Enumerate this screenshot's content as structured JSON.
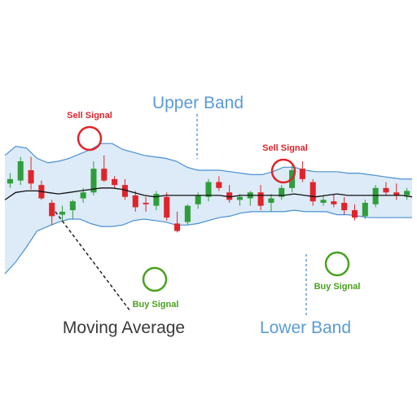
{
  "colors": {
    "band_fill": "#dcebf7",
    "band_line": "#4a8fd4",
    "bull": "#2e9e3a",
    "bear": "#e0242a",
    "ma_line": "#111111",
    "sell": "#e0242a",
    "buy": "#49a11f",
    "label_blue": "#5b9bd5",
    "label_dark": "#3a3a3a"
  },
  "labels": {
    "upper_band": "Upper Band",
    "lower_band": "Lower Band",
    "moving_average": "Moving Average",
    "sell_signal_1": "Sell Signal",
    "sell_signal_2": "Sell Signal",
    "buy_signal_1": "Buy Signal",
    "buy_signal_2": "Buy Signal"
  },
  "chart_data": {
    "type": "candlestick",
    "title": "",
    "xlabel": "",
    "ylabel": "",
    "ylim": [
      0,
      100
    ],
    "grid": false,
    "axes_shown": false,
    "upper_band": [
      82,
      88,
      87,
      80,
      77,
      78,
      80,
      83,
      86,
      90,
      90,
      86,
      84,
      82,
      81,
      80,
      78,
      74,
      72,
      72,
      72,
      71,
      70,
      69,
      69,
      71,
      74,
      74,
      72,
      71,
      71,
      71,
      70,
      70,
      69,
      68,
      67,
      66,
      66
    ],
    "lower_band": [
      2,
      10,
      20,
      31,
      34,
      37,
      39,
      39,
      36,
      34,
      34,
      35,
      38,
      39,
      38,
      37,
      35,
      35,
      36,
      38,
      40,
      41,
      43,
      44,
      44,
      44,
      44,
      45,
      44,
      44,
      44,
      42,
      42,
      41,
      40,
      40,
      40,
      40,
      40
    ],
    "moving_average": [
      52,
      57,
      58,
      58,
      57,
      56,
      57,
      58,
      59,
      60,
      60,
      59,
      57,
      55,
      54,
      55,
      55,
      55,
      55,
      55,
      55,
      54,
      55,
      55,
      55,
      55,
      55,
      56,
      55,
      54,
      55,
      56,
      55,
      55,
      55,
      55,
      55,
      55,
      54
    ],
    "candles": [
      {
        "o": 63,
        "h": 70,
        "l": 60,
        "c": 66
      },
      {
        "o": 65,
        "h": 81,
        "l": 62,
        "c": 78
      },
      {
        "o": 72,
        "h": 81,
        "l": 59,
        "c": 63
      },
      {
        "o": 62,
        "h": 65,
        "l": 52,
        "c": 53
      },
      {
        "o": 50,
        "h": 52,
        "l": 35,
        "c": 41
      },
      {
        "o": 42,
        "h": 48,
        "l": 38,
        "c": 44
      },
      {
        "o": 45,
        "h": 52,
        "l": 39,
        "c": 51
      },
      {
        "o": 53,
        "h": 60,
        "l": 50,
        "c": 57
      },
      {
        "o": 57,
        "h": 78,
        "l": 55,
        "c": 73
      },
      {
        "o": 73,
        "h": 82,
        "l": 64,
        "c": 65
      },
      {
        "o": 66,
        "h": 68,
        "l": 60,
        "c": 62
      },
      {
        "o": 62,
        "h": 66,
        "l": 52,
        "c": 54
      },
      {
        "o": 55,
        "h": 58,
        "l": 44,
        "c": 47
      },
      {
        "o": 50,
        "h": 54,
        "l": 44,
        "c": 49
      },
      {
        "o": 48,
        "h": 58,
        "l": 45,
        "c": 56
      },
      {
        "o": 54,
        "h": 57,
        "l": 38,
        "c": 40
      },
      {
        "o": 36,
        "h": 44,
        "l": 30,
        "c": 31
      },
      {
        "o": 37,
        "h": 49,
        "l": 35,
        "c": 48
      },
      {
        "o": 49,
        "h": 57,
        "l": 46,
        "c": 55
      },
      {
        "o": 54,
        "h": 66,
        "l": 51,
        "c": 64
      },
      {
        "o": 64,
        "h": 68,
        "l": 58,
        "c": 60
      },
      {
        "o": 57,
        "h": 62,
        "l": 50,
        "c": 52
      },
      {
        "o": 52,
        "h": 56,
        "l": 48,
        "c": 54
      },
      {
        "o": 53,
        "h": 58,
        "l": 48,
        "c": 57
      },
      {
        "o": 57,
        "h": 62,
        "l": 45,
        "c": 48
      },
      {
        "o": 50,
        "h": 56,
        "l": 44,
        "c": 53
      },
      {
        "o": 54,
        "h": 62,
        "l": 52,
        "c": 60
      },
      {
        "o": 60,
        "h": 75,
        "l": 57,
        "c": 72
      },
      {
        "o": 73,
        "h": 78,
        "l": 64,
        "c": 66
      },
      {
        "o": 64,
        "h": 66,
        "l": 48,
        "c": 51
      },
      {
        "o": 50,
        "h": 55,
        "l": 48,
        "c": 52
      },
      {
        "o": 51,
        "h": 56,
        "l": 47,
        "c": 49
      },
      {
        "o": 50,
        "h": 54,
        "l": 42,
        "c": 45
      },
      {
        "o": 45,
        "h": 49,
        "l": 38,
        "c": 40
      },
      {
        "o": 41,
        "h": 52,
        "l": 39,
        "c": 50
      },
      {
        "o": 49,
        "h": 62,
        "l": 47,
        "c": 60
      },
      {
        "o": 60,
        "h": 64,
        "l": 55,
        "c": 57
      },
      {
        "o": 57,
        "h": 63,
        "l": 52,
        "c": 55
      },
      {
        "o": 55,
        "h": 60,
        "l": 52,
        "c": 58
      }
    ]
  }
}
